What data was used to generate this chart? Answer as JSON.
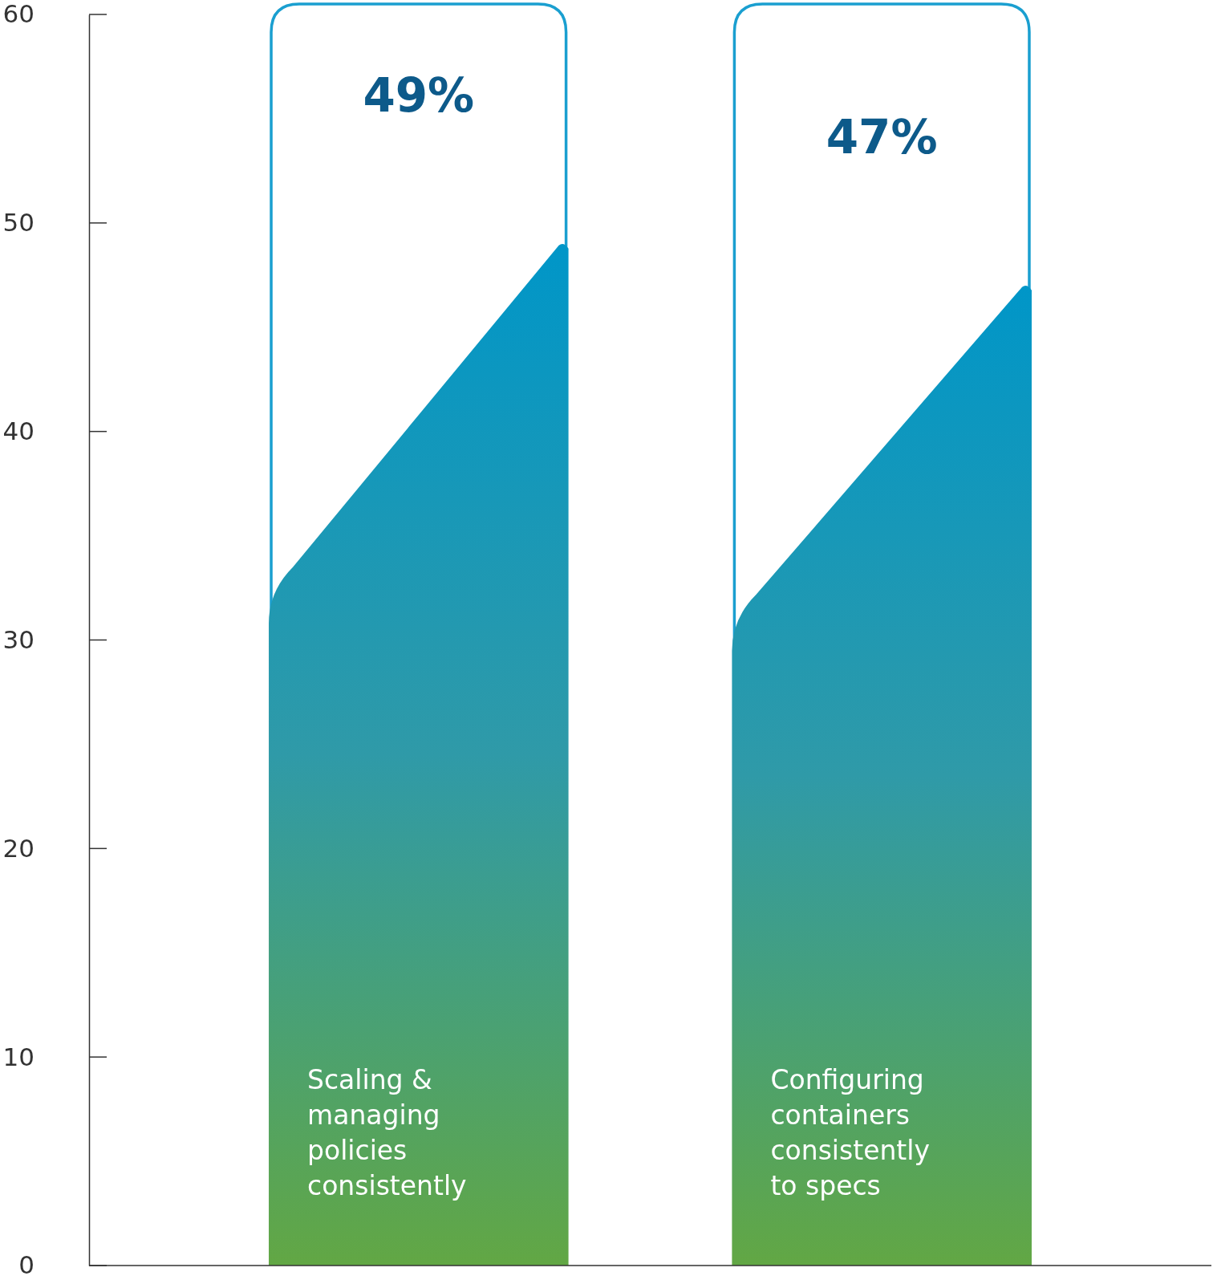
{
  "chart_data": {
    "type": "bar",
    "categories": [
      "Scaling & managing policies consistently",
      "Configuring containers consistently to specs"
    ],
    "values": [
      49,
      47
    ],
    "value_labels": [
      "49%",
      "47%"
    ],
    "color": "#0096c8",
    "ylim": [
      0,
      60
    ],
    "yticks": [
      0,
      10,
      20,
      30,
      40,
      50,
      60
    ],
    "grid": false
  }
}
